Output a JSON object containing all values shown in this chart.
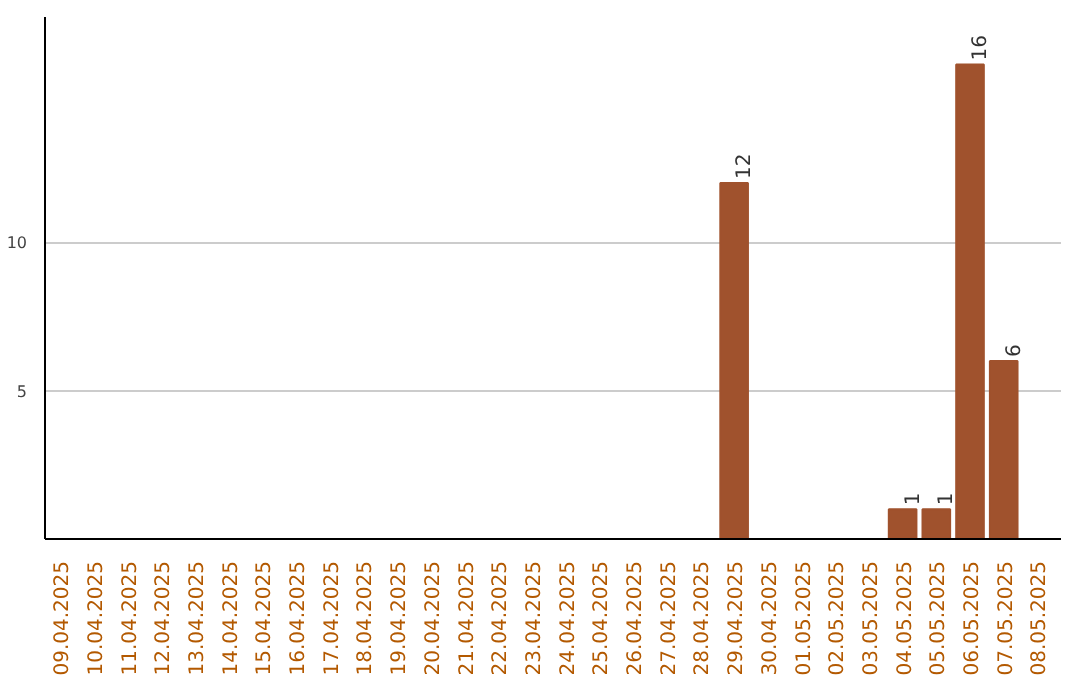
{
  "chart_data": {
    "type": "bar",
    "categories": [
      "09.04.2025",
      "10.04.2025",
      "11.04.2025",
      "12.04.2025",
      "13.04.2025",
      "14.04.2025",
      "15.04.2025",
      "16.04.2025",
      "17.04.2025",
      "18.04.2025",
      "19.04.2025",
      "20.04.2025",
      "21.04.2025",
      "22.04.2025",
      "23.04.2025",
      "24.04.2025",
      "25.04.2025",
      "26.04.2025",
      "27.04.2025",
      "28.04.2025",
      "29.04.2025",
      "30.04.2025",
      "01.05.2025",
      "02.05.2025",
      "03.05.2025",
      "04.05.2025",
      "05.05.2025",
      "06.05.2025",
      "07.05.2025",
      "08.05.2025"
    ],
    "values": [
      0,
      0,
      0,
      0,
      0,
      0,
      0,
      0,
      0,
      0,
      0,
      0,
      0,
      0,
      0,
      0,
      0,
      0,
      0,
      0,
      12,
      0,
      0,
      0,
      0,
      1,
      1,
      16,
      6,
      0
    ],
    "value_labels": [
      null,
      null,
      null,
      null,
      null,
      null,
      null,
      null,
      null,
      null,
      null,
      null,
      null,
      null,
      null,
      null,
      null,
      null,
      null,
      null,
      "12",
      null,
      null,
      null,
      null,
      "1",
      "1",
      "16",
      "6",
      null
    ],
    "color": "#a0522d",
    "ylim": [
      0,
      17.6
    ],
    "yticks": [
      5,
      10
    ],
    "grid": "y"
  }
}
